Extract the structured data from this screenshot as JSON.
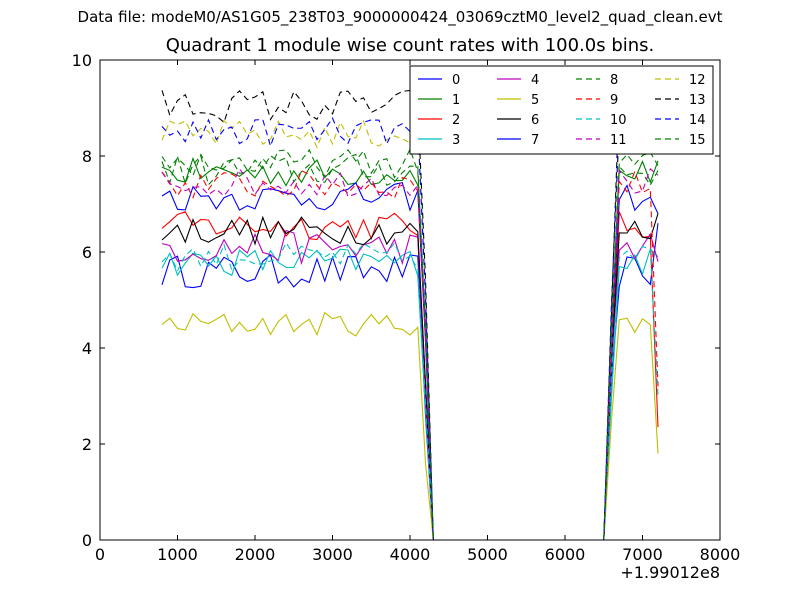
{
  "suptitle": "Data file: modeM0/AS1G05_238T03_9000000424_03069cztM0_level2_quad_clean.evt",
  "chart_data": {
    "type": "line",
    "title": "Quadrant 1 module wise count rates with 100.0s bins.",
    "xlabel": "",
    "ylabel": "",
    "xlim": [
      0,
      8000
    ],
    "ylim": [
      0,
      10
    ],
    "xticks": [
      0,
      1000,
      2000,
      3000,
      4000,
      5000,
      6000,
      7000,
      8000
    ],
    "yticks": [
      0,
      2,
      4,
      6,
      8,
      10
    ],
    "x_offset_label": "+1.99012e8",
    "grid": false,
    "legend_position": "top-right",
    "legend_columns": 4,
    "x_start": 800,
    "x_step": 100,
    "gap_start": 4300,
    "gap_end": 6500,
    "series": [
      {
        "name": "0",
        "color": "#0000ff",
        "dashed": false,
        "base": 5.6,
        "amp": 0.35,
        "drop": 3.0,
        "end": 6.6
      },
      {
        "name": "1",
        "color": "#008000",
        "dashed": false,
        "base": 7.65,
        "amp": 0.3,
        "drop": 3.2,
        "end": 7.9
      },
      {
        "name": "2",
        "color": "#ff0000",
        "dashed": false,
        "base": 6.55,
        "amp": 0.3,
        "drop": 3.3,
        "end": 2.35
      },
      {
        "name": "3",
        "color": "#00bfbf",
        "dashed": false,
        "base": 5.8,
        "amp": 0.3,
        "drop": 3.1,
        "end": 5.9
      },
      {
        "name": "4",
        "color": "#bf00bf",
        "dashed": false,
        "base": 6.1,
        "amp": 0.35,
        "drop": 3.2,
        "end": 5.8
      },
      {
        "name": "5",
        "color": "#bfbf00",
        "dashed": false,
        "base": 4.5,
        "amp": 0.25,
        "drop": 2.9,
        "end": 1.8
      },
      {
        "name": "6",
        "color": "#000000",
        "dashed": false,
        "base": 6.45,
        "amp": 0.3,
        "drop": 3.2,
        "end": 6.8
      },
      {
        "name": "7",
        "color": "#0000ff",
        "dashed": false,
        "base": 7.15,
        "amp": 0.3,
        "drop": 3.0,
        "end": 6.8
      },
      {
        "name": "8",
        "color": "#008000",
        "dashed": true,
        "base": 7.7,
        "amp": 0.35,
        "drop": 3.3,
        "end": 7.7
      },
      {
        "name": "9",
        "color": "#ff0000",
        "dashed": true,
        "base": 7.4,
        "amp": 0.3,
        "drop": 3.2,
        "end": 3.2
      },
      {
        "name": "10",
        "color": "#00bfbf",
        "dashed": true,
        "base": 5.9,
        "amp": 0.3,
        "drop": 3.0,
        "end": 3.0
      },
      {
        "name": "11",
        "color": "#bf00bf",
        "dashed": true,
        "base": 7.45,
        "amp": 0.3,
        "drop": 3.2,
        "end": 7.6
      },
      {
        "name": "12",
        "color": "#bfbf00",
        "dashed": true,
        "base": 8.45,
        "amp": 0.3,
        "drop": 3.4,
        "end": 8.0
      },
      {
        "name": "13",
        "color": "#000000",
        "dashed": true,
        "base": 9.05,
        "amp": 0.35,
        "drop": 3.6,
        "end": 9.2
      },
      {
        "name": "14",
        "color": "#0000ff",
        "dashed": true,
        "base": 8.5,
        "amp": 0.3,
        "drop": 3.4,
        "end": 8.9
      },
      {
        "name": "15",
        "color": "#008000",
        "dashed": true,
        "base": 7.85,
        "amp": 0.3,
        "drop": 3.3,
        "end": 7.8
      }
    ]
  }
}
